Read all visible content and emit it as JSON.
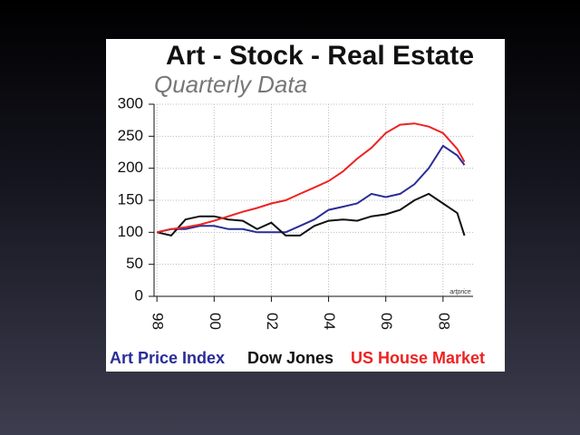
{
  "chart_data": {
    "type": "line",
    "title": "Art - Stock - Real Estate",
    "subtitle": "Quarterly Data",
    "annotation": "artprice",
    "x": [
      1998,
      1998.5,
      1999,
      1999.5,
      2000,
      2000.5,
      2001,
      2001.5,
      2002,
      2002.5,
      2003,
      2003.5,
      2004,
      2004.5,
      2005,
      2005.5,
      2006,
      2006.5,
      2007,
      2007.5,
      2008,
      2008.5,
      2008.75
    ],
    "series": [
      {
        "name": "Art Price Index",
        "color": "#2a2d96",
        "values": [
          100,
          105,
          105,
          110,
          110,
          105,
          105,
          100,
          100,
          100,
          110,
          120,
          135,
          140,
          145,
          160,
          155,
          160,
          175,
          200,
          235,
          220,
          205
        ]
      },
      {
        "name": "Dow Jones",
        "color": "#111111",
        "values": [
          100,
          95,
          120,
          125,
          125,
          120,
          118,
          105,
          115,
          95,
          95,
          110,
          118,
          120,
          118,
          125,
          128,
          135,
          150,
          160,
          145,
          130,
          95
        ]
      },
      {
        "name": "US House Market",
        "color": "#ee2222",
        "values": [
          100,
          105,
          108,
          112,
          118,
          125,
          132,
          138,
          145,
          150,
          160,
          170,
          180,
          195,
          215,
          232,
          255,
          268,
          270,
          265,
          255,
          230,
          210
        ]
      }
    ],
    "xlim": [
      1997.9,
      2009.05
    ],
    "xticks": [
      {
        "value": 1998,
        "label": "98"
      },
      {
        "value": 2000,
        "label": "00"
      },
      {
        "value": 2002,
        "label": "02"
      },
      {
        "value": 2004,
        "label": "04"
      },
      {
        "value": 2006,
        "label": "06"
      },
      {
        "value": 2008,
        "label": "08"
      }
    ],
    "ylim": [
      0,
      300
    ],
    "yticks": [
      0,
      50,
      100,
      150,
      200,
      250,
      300
    ],
    "grid": true
  }
}
